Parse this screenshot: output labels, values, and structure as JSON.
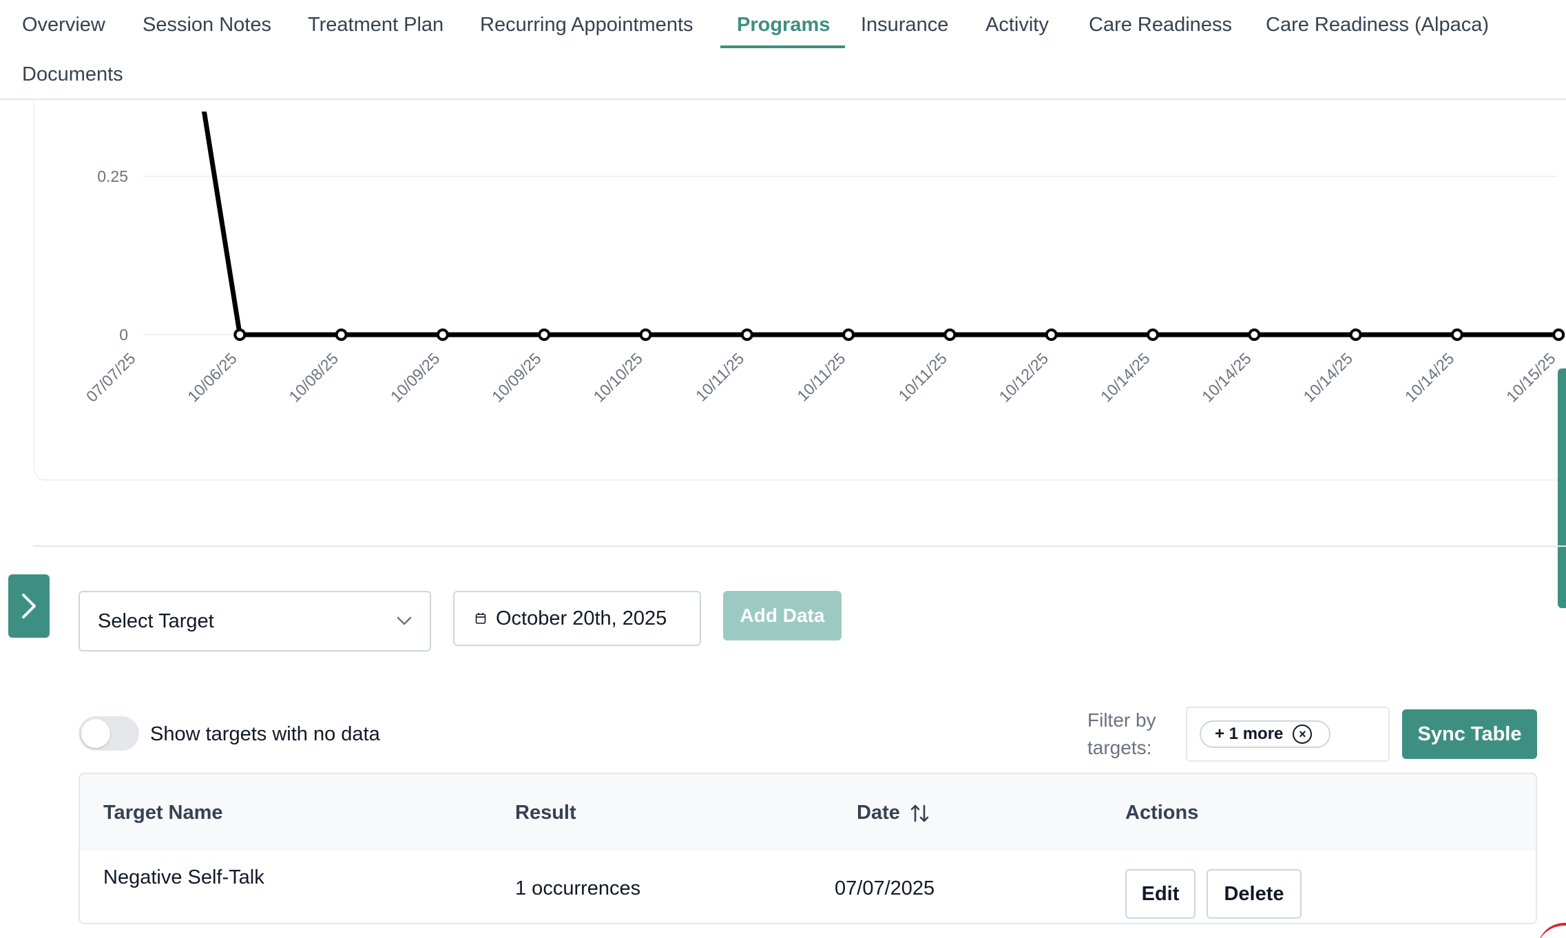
{
  "tabs": {
    "overview": "Overview",
    "session_notes": "Session Notes",
    "treatment_plan": "Treatment Plan",
    "recurring_appointments": "Recurring Appointments",
    "programs": "Programs",
    "insurance": "Insurance",
    "activity": "Activity",
    "care_readiness": "Care Readiness",
    "care_readiness_alpaca": "Care Readiness (Alpaca)",
    "documents": "Documents",
    "active": "Programs"
  },
  "chart_data": {
    "type": "line",
    "categories": [
      "07/07/25",
      "10/06/25",
      "10/08/25",
      "10/09/25",
      "10/09/25",
      "10/10/25",
      "10/11/25",
      "10/11/25",
      "10/11/25",
      "10/12/25",
      "10/14/25",
      "10/14/25",
      "10/14/25",
      "10/14/25",
      "10/15/25"
    ],
    "values": [
      1,
      0,
      0,
      0,
      0,
      0,
      0,
      0,
      0,
      0,
      0,
      0,
      0,
      0,
      0
    ],
    "y_ticks": [
      "0",
      "0.25"
    ],
    "grid": true,
    "line_color": "#000000"
  },
  "controls": {
    "select_target": "Select Target",
    "date": "October 20th, 2025",
    "add_data": "Add Data"
  },
  "filters": {
    "show_empty_label": "Show targets with no data",
    "show_empty_on": false,
    "filter_by_label": "Filter by targets:",
    "chip_label": "+ 1 more",
    "sync_button": "Sync Table"
  },
  "table": {
    "headers": {
      "target_name": "Target Name",
      "result": "Result",
      "date": "Date",
      "actions": "Actions"
    },
    "rows": [
      {
        "target_name": "Negative Self-Talk",
        "result": "1 occurrences",
        "date": "07/07/2025",
        "edit": "Edit",
        "delete": "Delete"
      }
    ]
  },
  "colors": {
    "accent": "#3d8f82",
    "accent_disabled": "#9ccac2"
  }
}
